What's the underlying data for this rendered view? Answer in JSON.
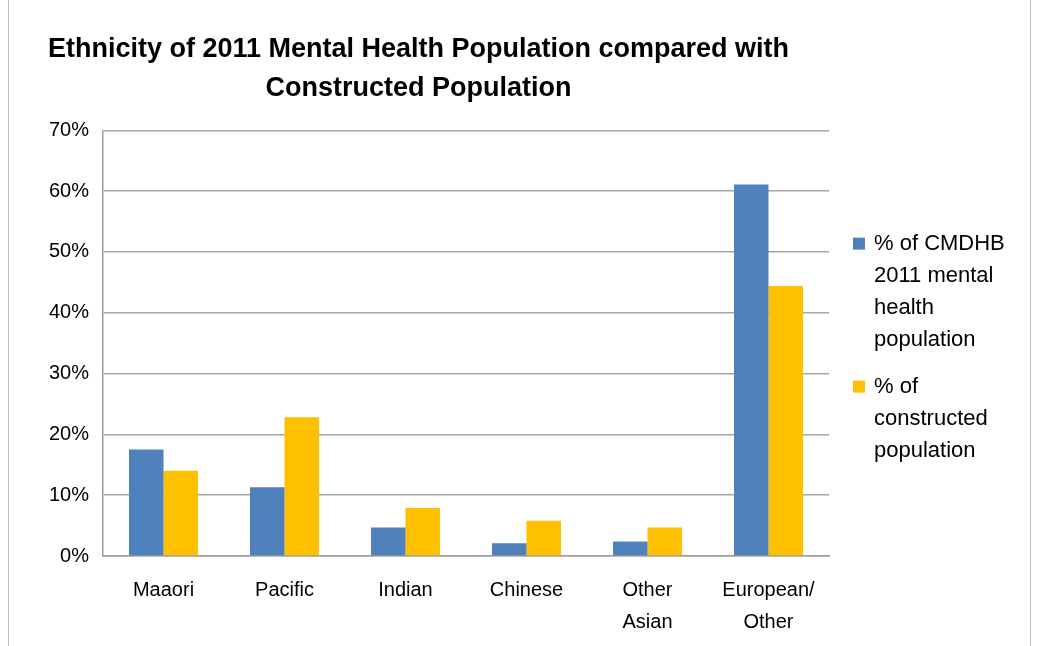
{
  "chart_data": {
    "type": "bar",
    "title": "Ethnicity of 2011 Mental Health Population compared with Constructed Population",
    "categories": [
      "Maaori",
      "Pacific",
      "Indian",
      "Chinese",
      "Other Asian",
      "European/ Other"
    ],
    "series": [
      {
        "name": "% of CMDHB 2011 mental health population",
        "color": "#4f81bd",
        "values": [
          17.5,
          11.3,
          4.7,
          2.1,
          2.4,
          61.1
        ]
      },
      {
        "name": "% of constructed population",
        "color": "#ffc000",
        "values": [
          14.0,
          22.8,
          7.9,
          5.8,
          4.7,
          44.4
        ]
      }
    ],
    "ylim": [
      0,
      70
    ],
    "yticks": [
      {
        "value": 0,
        "label": "0%"
      },
      {
        "value": 10,
        "label": "10%"
      },
      {
        "value": 20,
        "label": "20%"
      },
      {
        "value": 30,
        "label": "30%"
      },
      {
        "value": 40,
        "label": "40%"
      },
      {
        "value": 50,
        "label": "50%"
      },
      {
        "value": 60,
        "label": "60%"
      },
      {
        "value": 70,
        "label": "70%"
      }
    ],
    "grid": "y",
    "legend": "right"
  }
}
